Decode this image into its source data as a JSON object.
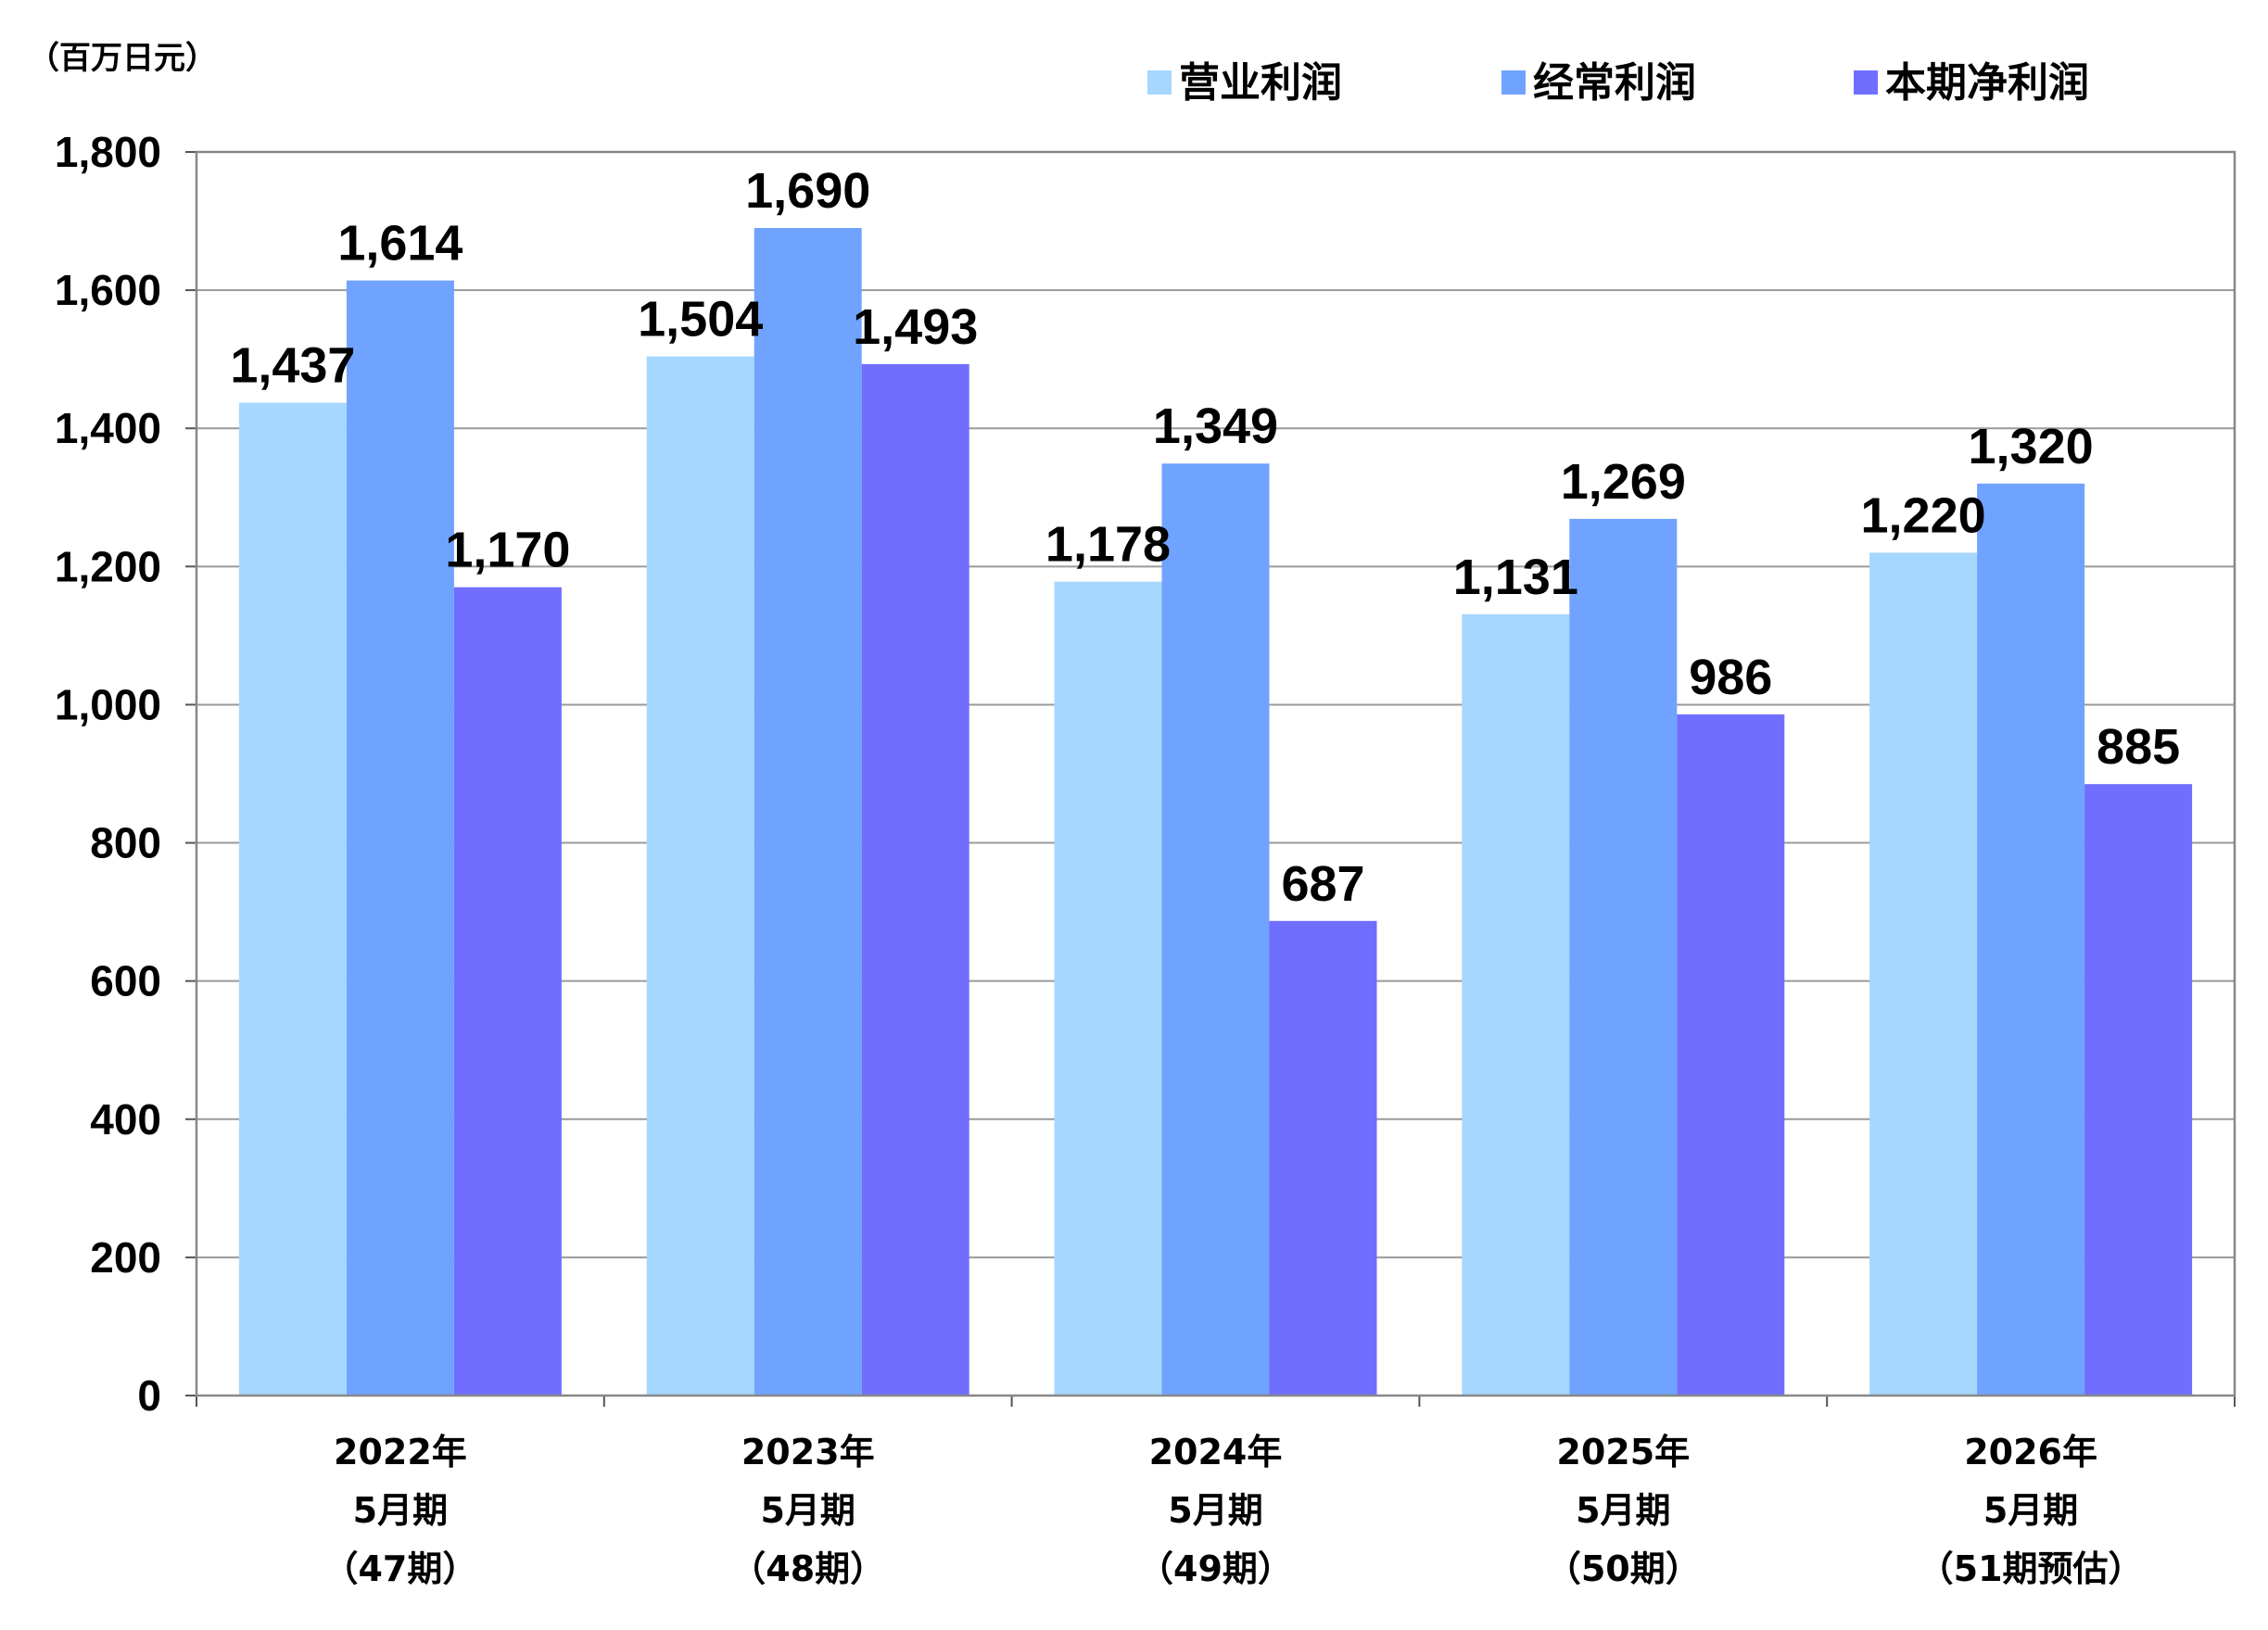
{
  "chart_data": {
    "type": "bar",
    "unit_label": "（百万日元）",
    "categories": [
      [
        "2022年",
        "5月期",
        "（47期）"
      ],
      [
        "2023年",
        "5月期",
        "（48期）"
      ],
      [
        "2024年",
        "5月期",
        "（49期）"
      ],
      [
        "2025年",
        "5月期",
        "（50期）"
      ],
      [
        "2026年",
        "5月期",
        "（51期预估）"
      ]
    ],
    "series": [
      {
        "name": "营业利润",
        "color": "#a6d7ff",
        "values": [
          1437,
          1504,
          1178,
          1131,
          1220
        ]
      },
      {
        "name": "经常利润",
        "color": "#70a3ff",
        "values": [
          1614,
          1690,
          1349,
          1269,
          1320
        ]
      },
      {
        "name": "本期净利润",
        "color": "#6f6eff",
        "values": [
          1170,
          1493,
          687,
          986,
          885
        ]
      }
    ],
    "ylim": [
      0,
      1800
    ],
    "yticks": [
      "0",
      "200",
      "400",
      "600",
      "800",
      "1,000",
      "1,200",
      "1,400",
      "1,600",
      "1,800"
    ],
    "grid": true,
    "legend_position": "top-right"
  }
}
